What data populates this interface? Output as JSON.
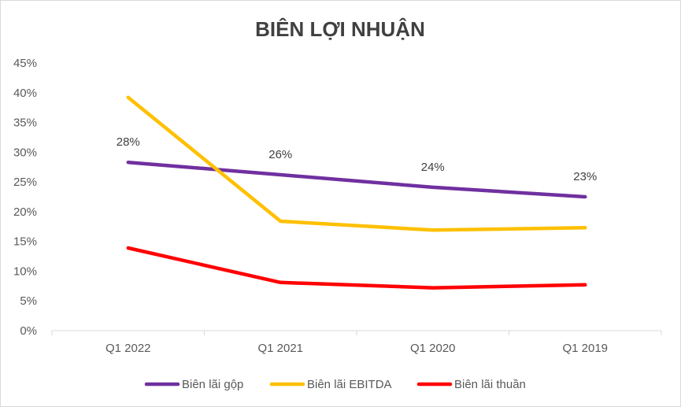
{
  "chart_data": {
    "type": "line",
    "title": "BIÊN LỢI NHUẬN",
    "categories": [
      "Q1 2022",
      "Q1 2021",
      "Q1 2020",
      "Q1 2019"
    ],
    "y_ticks": [
      "0%",
      "5%",
      "10%",
      "15%",
      "20%",
      "25%",
      "30%",
      "35%",
      "40%",
      "45%"
    ],
    "ylim": [
      0,
      45
    ],
    "grid": false,
    "legend_position": "bottom",
    "series": [
      {
        "name": "Biên lãi gộp",
        "color": "#7030a0",
        "values": [
          28.3,
          26.2,
          24.1,
          22.5
        ],
        "data_labels": [
          "28%",
          "26%",
          "24%",
          "23%"
        ]
      },
      {
        "name": "Biên lãi EBITDA",
        "color": "#ffc000",
        "values": [
          39.2,
          18.4,
          16.9,
          17.3
        ],
        "data_labels": []
      },
      {
        "name": "Biên lãi thuần",
        "color": "#ff0000",
        "values": [
          13.9,
          8.1,
          7.2,
          7.7
        ],
        "data_labels": []
      }
    ]
  }
}
